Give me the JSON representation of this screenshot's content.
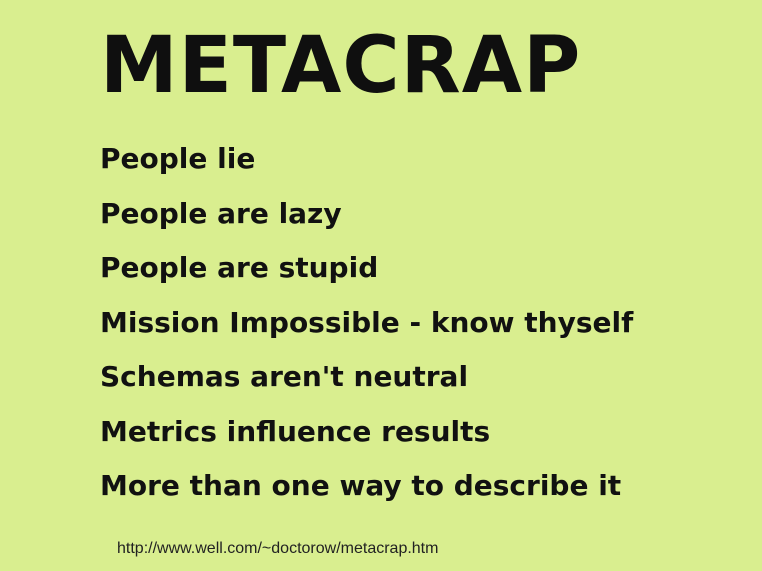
{
  "slide": {
    "title": "METACRAP",
    "points": [
      "People lie",
      "People are lazy",
      "People are stupid",
      "Mission Impossible - know thyself",
      "Schemas aren't neutral",
      "Metrics influence results",
      "More than one way to describe it"
    ],
    "source_url": "http://www.well.com/~doctorow/metacrap.htm"
  },
  "colors": {
    "background": "#d9ee8f",
    "text": "#111111"
  }
}
